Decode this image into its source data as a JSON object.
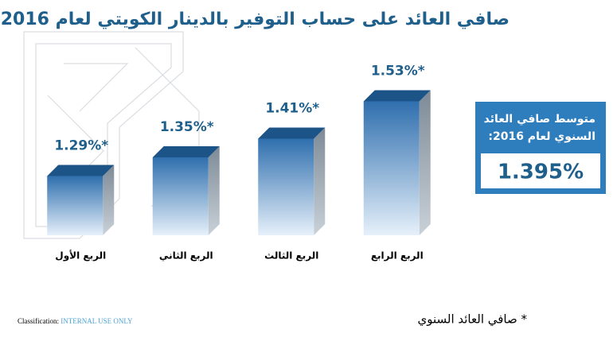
{
  "chart_data": {
    "type": "bar3d",
    "title": "صافي العائد على حساب التوفير بالدينار الكويتي لعام 2016",
    "categories": [
      "الربع الأول",
      "الربع الثاني",
      "الربع الثالث",
      "الربع الرابع"
    ],
    "values": [
      1.29,
      1.35,
      1.41,
      1.53
    ],
    "value_labels": [
      "1.29%*",
      "1.35%*",
      "1.41%*",
      "1.53%*"
    ],
    "color": "#2f6fae",
    "ylim": [
      1.1,
      1.6
    ]
  },
  "summary": {
    "label_lines": [
      "متوسط صافي العائد",
      "السنوي لعام 2016:"
    ],
    "value": "1.395%"
  },
  "footnote": "* صافي العائد السنوي",
  "classification": {
    "label": "Classification:",
    "value": "INTERNAL USE ONLY"
  }
}
